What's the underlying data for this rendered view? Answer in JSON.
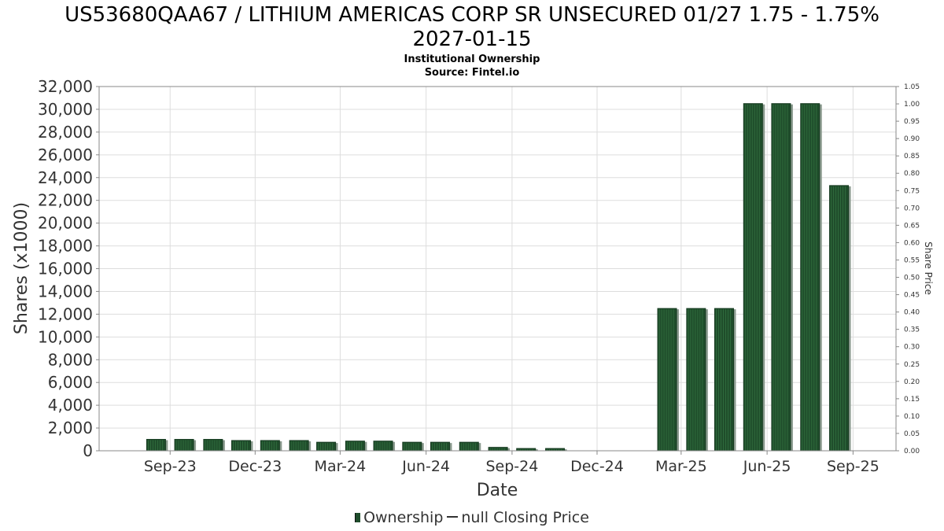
{
  "header": {
    "title_line1": "US53680QAA67 / LITHIUM AMERICAS CORP SR UNSECURED 01/27 1.75 - 1.75%",
    "title_line2": "2027-01-15",
    "subtitle": "Institutional Ownership",
    "source": "Source: Fintel.io"
  },
  "legend": {
    "ownership_label": "Ownership",
    "price_label": "null Closing Price"
  },
  "colors": {
    "bar": "#1f4d2b",
    "bar_stripe": "#2f6b3c",
    "bar_shadow": "#8a9a8e",
    "grid": "#dddddd",
    "axis": "#888888"
  },
  "chart_data": {
    "type": "bar",
    "xlabel": "Date",
    "ylabel": "Shares (x1000)",
    "y2label": "Share Price",
    "ylim": [
      0,
      32000
    ],
    "y2lim": [
      0,
      1.05
    ],
    "yticks": [
      "0",
      "2,000",
      "4,000",
      "6,000",
      "8,000",
      "10,000",
      "12,000",
      "14,000",
      "16,000",
      "18,000",
      "20,000",
      "22,000",
      "24,000",
      "26,000",
      "28,000",
      "30,000",
      "32,000"
    ],
    "y2ticks": [
      "0.00",
      "0.05",
      "0.10",
      "0.15",
      "0.20",
      "0.25",
      "0.30",
      "0.35",
      "0.40",
      "0.45",
      "0.50",
      "0.55",
      "0.60",
      "0.65",
      "0.70",
      "0.75",
      "0.80",
      "0.85",
      "0.90",
      "0.95",
      "1.00",
      "1.05"
    ],
    "xticks": [
      "Sep-23",
      "Dec-23",
      "Mar-24",
      "Jun-24",
      "Sep-24",
      "Dec-24",
      "Mar-25",
      "Jun-25",
      "Sep-25"
    ],
    "x_range": [
      "2023-07-01",
      "2025-10-31"
    ],
    "grid": true,
    "legend_position": "bottom",
    "series": [
      {
        "name": "Ownership",
        "x": [
          "2023-08-31",
          "2023-09-30",
          "2023-10-31",
          "2023-11-30",
          "2023-12-31",
          "2024-01-31",
          "2024-02-29",
          "2024-03-31",
          "2024-04-30",
          "2024-05-31",
          "2024-06-30",
          "2024-07-31",
          "2024-08-31",
          "2024-09-30",
          "2024-10-31",
          "2025-02-28",
          "2025-03-31",
          "2025-04-30",
          "2025-05-31",
          "2025-06-30",
          "2025-07-31",
          "2025-08-31"
        ],
        "values": [
          1000,
          1000,
          1000,
          900,
          900,
          900,
          750,
          850,
          850,
          750,
          750,
          750,
          300,
          200,
          200,
          12500,
          12500,
          12500,
          30500,
          30500,
          30500,
          23300
        ]
      }
    ]
  }
}
